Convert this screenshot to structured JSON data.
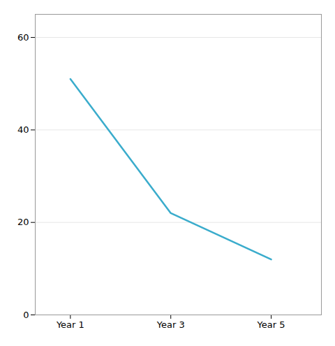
{
  "chart_data": {
    "type": "line",
    "x": [
      1,
      3,
      5
    ],
    "values": [
      51,
      22,
      12
    ],
    "color": "#3aaccc",
    "xlim": [
      0.3,
      6.0
    ],
    "xticks": [
      {
        "value": 1,
        "label": "Year 1"
      },
      {
        "value": 3,
        "label": "Year 3"
      },
      {
        "value": 5,
        "label": "Year 5"
      }
    ],
    "ylim": [
      0,
      65
    ],
    "yticks": [
      0,
      20,
      40,
      60
    ],
    "grid": true
  }
}
